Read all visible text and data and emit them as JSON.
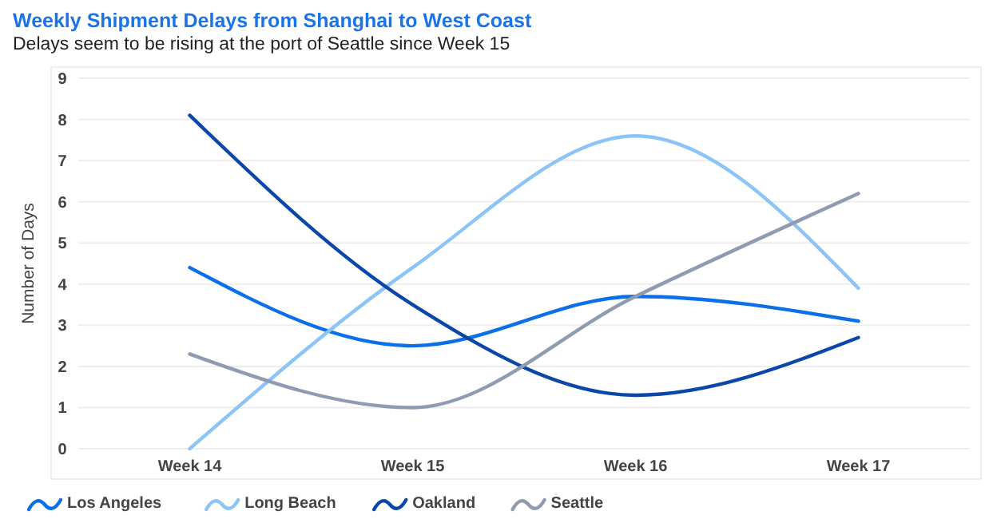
{
  "chart_data": {
    "type": "line",
    "title": "Weekly Shipment Delays from Shanghai to West Coast",
    "subtitle": "Delays seem to be rising at the port of Seattle since Week 15",
    "ylabel": "Number of Days",
    "categories": [
      "Week 14",
      "Week 15",
      "Week 16",
      "Week 17"
    ],
    "series": [
      {
        "name": "Los Angeles",
        "color": "#0a6fe8",
        "values": [
          4.4,
          2.5,
          3.7,
          3.1
        ]
      },
      {
        "name": "Long Beach",
        "color": "#8cc4f8",
        "values": [
          0,
          4.4,
          7.6,
          3.9
        ]
      },
      {
        "name": "Oakland",
        "color": "#0a47a8",
        "values": [
          8.1,
          3.5,
          1.3,
          2.7
        ]
      },
      {
        "name": "Seattle",
        "color": "#8e9bb0",
        "values": [
          2.3,
          1.0,
          3.7,
          6.2
        ]
      }
    ],
    "ylim": [
      0,
      9
    ],
    "yticks": [
      0,
      1,
      2,
      3,
      4,
      5,
      6,
      7,
      8,
      9
    ],
    "grid": "y",
    "legend": "bottom left",
    "marker": "none",
    "line_style": "solid"
  }
}
